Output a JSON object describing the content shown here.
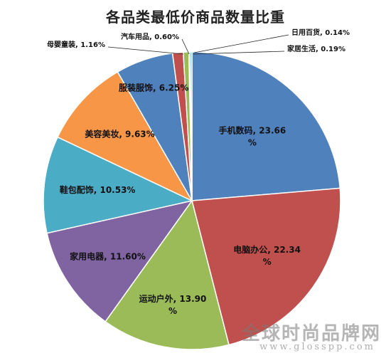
{
  "chart_data": {
    "type": "pie",
    "title": "各品类最低价商品数量比重",
    "slices": [
      {
        "label": "手机数码",
        "value": 23.66,
        "text": "手机数码, 23.66 %",
        "color": "#4F81BD"
      },
      {
        "label": "电脑办公",
        "value": 22.34,
        "text": "电脑办公, 22.34 %",
        "color": "#C0504D"
      },
      {
        "label": "运动户外",
        "value": 13.9,
        "text": "运动户外, 13.90 %",
        "color": "#9BBB59"
      },
      {
        "label": "家用电器",
        "value": 11.6,
        "text": "家用电器, 11.60%",
        "color": "#8064A2"
      },
      {
        "label": "鞋包配饰",
        "value": 10.53,
        "text": "鞋包配饰, 10.53%",
        "color": "#4BACC6"
      },
      {
        "label": "美容美妆",
        "value": 9.63,
        "text": "美容美妆, 9.63%",
        "color": "#F79646"
      },
      {
        "label": "服装服饰",
        "value": 6.25,
        "text": "服装服饰, 6.25%",
        "color": "#4F81BD"
      },
      {
        "label": "母婴童装",
        "value": 1.16,
        "text": "母婴童装, 1.16%",
        "color": "#C0504D"
      },
      {
        "label": "汽车用品",
        "value": 0.6,
        "text": "汽车用品, 0.60%",
        "color": "#9BBB59"
      },
      {
        "label": "日用百货",
        "value": 0.14,
        "text": "日用百货, 0.14%",
        "color": "#8064A2"
      },
      {
        "label": "家居生活",
        "value": 0.19,
        "text": "家居生活, 0.19%",
        "color": "#4BACC6"
      }
    ],
    "legend": "none"
  },
  "watermark": {
    "site_name": "全球时尚品牌网",
    "url": "www.glosspp.com"
  }
}
